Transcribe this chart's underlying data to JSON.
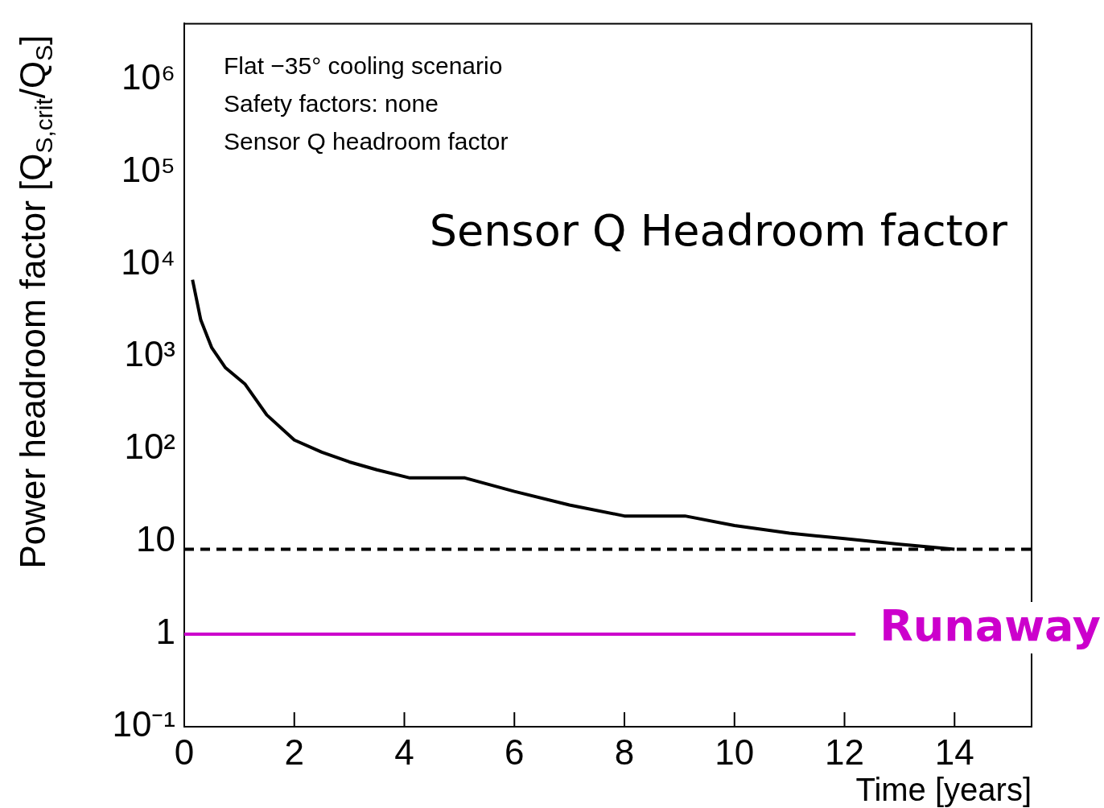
{
  "chart_data": {
    "type": "line",
    "title": "Sensor Q Headroom factor",
    "xlabel": "Time [years]",
    "ylabel": "Power headroom factor [Q$_{S,crit}$/Q$_{S}$]",
    "annotations": [
      "Flat −35° cooling scenario",
      "Safety factors: none",
      "Sensor Q headroom factor"
    ],
    "x": [
      0.15,
      0.3,
      0.5,
      0.75,
      1.1,
      1.5,
      2,
      2.5,
      3,
      3.5,
      4.1,
      5.1,
      6,
      7,
      8,
      9.1,
      10,
      11,
      12,
      13,
      14
    ],
    "series": [
      {
        "color": "#000000",
        "values": [
          6800,
          2500,
          1250,
          760,
          510,
          235,
          126,
          93,
          73,
          60,
          49,
          49,
          35,
          25,
          19,
          19,
          15,
          12.4,
          10.8,
          9.4,
          8.3
        ]
      }
    ],
    "xlim": [
      0,
      15.4
    ],
    "xticks": [
      0,
      2,
      4,
      6,
      8,
      10,
      12,
      14
    ],
    "ylim": [
      0.1,
      4000000
    ],
    "yticks": [
      {
        "value": 0.1,
        "label": "10⁻¹"
      },
      1,
      10,
      {
        "value": 100,
        "label": "10²"
      },
      {
        "value": 1000,
        "label": "10³"
      },
      {
        "value": 10000,
        "label": "10⁴"
      },
      {
        "value": 100000,
        "label": "10⁵"
      },
      {
        "value": 1000000,
        "label": "10⁶"
      }
    ],
    "log": "y",
    "grid": false,
    "legend": false,
    "marker": "none",
    "line_style": "solid",
    "ref_lines": [
      {
        "axis": "y",
        "value": 8.3,
        "color": "#000000",
        "line_style": "dashed"
      },
      {
        "axis": "y",
        "value": 1,
        "label": "Runaway",
        "color": "#cc00cc",
        "line_style": "solid"
      }
    ]
  }
}
